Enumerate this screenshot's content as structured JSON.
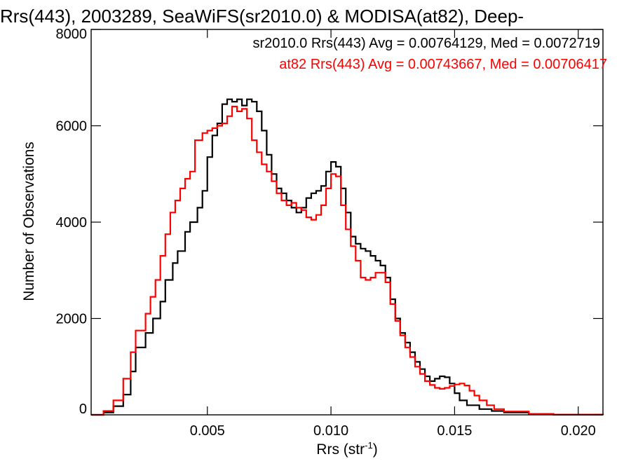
{
  "chart_data": {
    "type": "line",
    "title": "Rrs(443), 2003289, SeaWiFS(sr2010.0) & MODISA(at82), Deep-",
    "xlabel": "Rrs (str",
    "xlabel_sup": "-1",
    "xlabel_end": ")",
    "ylabel": "Number of Observations",
    "xlim": [
      0.0003,
      0.021
    ],
    "ylim": [
      0,
      8000
    ],
    "x_ticks": [
      {
        "value": 0.005,
        "label": "0.005"
      },
      {
        "value": 0.01,
        "label": "0.010"
      },
      {
        "value": 0.015,
        "label": "0.015"
      },
      {
        "value": 0.02,
        "label": "0.020"
      }
    ],
    "y_ticks": [
      {
        "value": 0,
        "label": "0"
      },
      {
        "value": 2000,
        "label": "2000"
      },
      {
        "value": 4000,
        "label": "4000"
      },
      {
        "value": 6000,
        "label": "6000"
      },
      {
        "value": 8000,
        "label": "8000"
      }
    ],
    "grid": false,
    "legend_position": "top-right",
    "legend": [
      {
        "text": "sr2010.0 Rrs(443) Avg = 0.00764129, Med = 0.0072719",
        "color": "#000000"
      },
      {
        "text": "at82 Rrs(443) Avg = 0.00743667, Med = 0.00706417",
        "color": "#ff0000"
      }
    ],
    "series": [
      {
        "color": "#000000",
        "points": [
          [
            0.0003,
            0
          ],
          [
            0.0008,
            50
          ],
          [
            0.0012,
            180
          ],
          [
            0.0016,
            420
          ],
          [
            0.0019,
            900
          ],
          [
            0.0021,
            1400
          ],
          [
            0.0025,
            1700
          ],
          [
            0.0028,
            2000
          ],
          [
            0.0031,
            2350
          ],
          [
            0.0033,
            2800
          ],
          [
            0.0036,
            3150
          ],
          [
            0.0038,
            3400
          ],
          [
            0.0041,
            3800
          ],
          [
            0.0043,
            4000
          ],
          [
            0.0046,
            4300
          ],
          [
            0.0048,
            4650
          ],
          [
            0.005,
            5350
          ],
          [
            0.0052,
            5800
          ],
          [
            0.0054,
            6050
          ],
          [
            0.0056,
            6450
          ],
          [
            0.0058,
            6550
          ],
          [
            0.006,
            6500
          ],
          [
            0.0062,
            6550
          ],
          [
            0.0064,
            6420
          ],
          [
            0.0066,
            6550
          ],
          [
            0.0068,
            6500
          ],
          [
            0.007,
            6300
          ],
          [
            0.0072,
            5900
          ],
          [
            0.0074,
            5400
          ],
          [
            0.0076,
            5000
          ],
          [
            0.0078,
            4700
          ],
          [
            0.008,
            4600
          ],
          [
            0.0082,
            4450
          ],
          [
            0.0084,
            4300
          ],
          [
            0.0086,
            4200
          ],
          [
            0.0088,
            4300
          ],
          [
            0.009,
            4500
          ],
          [
            0.0092,
            4600
          ],
          [
            0.0094,
            4650
          ],
          [
            0.0096,
            4750
          ],
          [
            0.0098,
            5050
          ],
          [
            0.01,
            5250
          ],
          [
            0.0102,
            5150
          ],
          [
            0.0104,
            4700
          ],
          [
            0.0106,
            4200
          ],
          [
            0.0108,
            3700
          ],
          [
            0.011,
            3550
          ],
          [
            0.0112,
            3450
          ],
          [
            0.0114,
            3400
          ],
          [
            0.0116,
            3300
          ],
          [
            0.0118,
            3200
          ],
          [
            0.012,
            3100
          ],
          [
            0.0122,
            2850
          ],
          [
            0.0124,
            2400
          ],
          [
            0.0126,
            2000
          ],
          [
            0.0128,
            1700
          ],
          [
            0.013,
            1500
          ],
          [
            0.0132,
            1300
          ],
          [
            0.0134,
            1100
          ],
          [
            0.0136,
            950
          ],
          [
            0.0138,
            800
          ],
          [
            0.014,
            700
          ],
          [
            0.0142,
            750
          ],
          [
            0.0144,
            800
          ],
          [
            0.0146,
            780
          ],
          [
            0.0148,
            650
          ],
          [
            0.015,
            450
          ],
          [
            0.0152,
            300
          ],
          [
            0.0155,
            200
          ],
          [
            0.016,
            120
          ],
          [
            0.0165,
            80
          ],
          [
            0.017,
            50
          ],
          [
            0.018,
            20
          ],
          [
            0.019,
            5
          ],
          [
            0.021,
            0
          ]
        ]
      },
      {
        "color": "#ff0000",
        "points": [
          [
            0.0003,
            0
          ],
          [
            0.0008,
            80
          ],
          [
            0.0012,
            300
          ],
          [
            0.0016,
            750
          ],
          [
            0.0019,
            1300
          ],
          [
            0.0021,
            1750
          ],
          [
            0.0025,
            2100
          ],
          [
            0.0027,
            2450
          ],
          [
            0.0029,
            2800
          ],
          [
            0.0031,
            3300
          ],
          [
            0.0033,
            3750
          ],
          [
            0.0035,
            4200
          ],
          [
            0.0037,
            4450
          ],
          [
            0.0039,
            4700
          ],
          [
            0.0041,
            4900
          ],
          [
            0.0043,
            5050
          ],
          [
            0.0045,
            5700
          ],
          [
            0.0048,
            5850
          ],
          [
            0.005,
            5900
          ],
          [
            0.0052,
            5950
          ],
          [
            0.0054,
            6000
          ],
          [
            0.0056,
            6050
          ],
          [
            0.0058,
            6200
          ],
          [
            0.006,
            6400
          ],
          [
            0.0062,
            6300
          ],
          [
            0.0064,
            6350
          ],
          [
            0.0066,
            6150
          ],
          [
            0.0068,
            5700
          ],
          [
            0.007,
            5450
          ],
          [
            0.0072,
            5200
          ],
          [
            0.0074,
            5050
          ],
          [
            0.0076,
            4850
          ],
          [
            0.0078,
            4600
          ],
          [
            0.008,
            4450
          ],
          [
            0.0082,
            4350
          ],
          [
            0.0084,
            4400
          ],
          [
            0.0086,
            4300
          ],
          [
            0.0088,
            4250
          ],
          [
            0.009,
            4100
          ],
          [
            0.0092,
            4050
          ],
          [
            0.0094,
            4150
          ],
          [
            0.0096,
            4350
          ],
          [
            0.0098,
            4700
          ],
          [
            0.01,
            5000
          ],
          [
            0.0102,
            4950
          ],
          [
            0.0104,
            4350
          ],
          [
            0.0106,
            3850
          ],
          [
            0.0108,
            3500
          ],
          [
            0.011,
            3200
          ],
          [
            0.0112,
            2850
          ],
          [
            0.0114,
            2800
          ],
          [
            0.0116,
            2850
          ],
          [
            0.0118,
            2950
          ],
          [
            0.012,
            2950
          ],
          [
            0.0122,
            2750
          ],
          [
            0.0124,
            2300
          ],
          [
            0.0126,
            1950
          ],
          [
            0.0128,
            1650
          ],
          [
            0.013,
            1400
          ],
          [
            0.0132,
            1200
          ],
          [
            0.0134,
            1000
          ],
          [
            0.0136,
            850
          ],
          [
            0.0138,
            700
          ],
          [
            0.014,
            620
          ],
          [
            0.0142,
            560
          ],
          [
            0.0144,
            540
          ],
          [
            0.0146,
            560
          ],
          [
            0.0148,
            600
          ],
          [
            0.015,
            630
          ],
          [
            0.0152,
            650
          ],
          [
            0.0154,
            610
          ],
          [
            0.0156,
            500
          ],
          [
            0.0158,
            400
          ],
          [
            0.016,
            300
          ],
          [
            0.0163,
            200
          ],
          [
            0.0166,
            120
          ],
          [
            0.017,
            70
          ],
          [
            0.018,
            20
          ],
          [
            0.019,
            5
          ],
          [
            0.021,
            0
          ]
        ]
      }
    ]
  }
}
